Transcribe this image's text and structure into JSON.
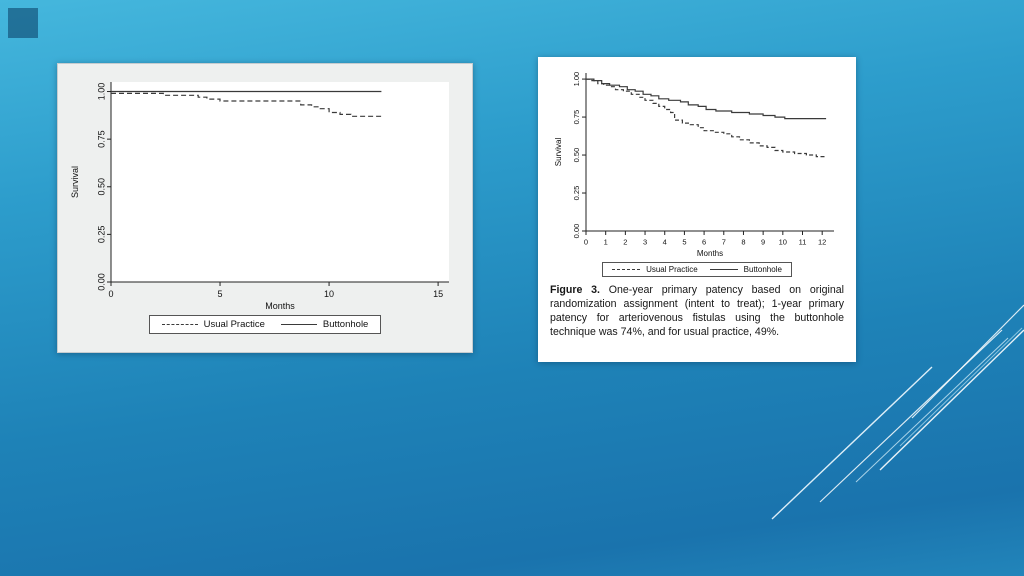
{
  "slide": {
    "background_top_color": "#45b7dd",
    "background_bottom_color": "#1a73ad"
  },
  "chart_data": [
    {
      "type": "line",
      "subtype": "kaplan-meier-step",
      "title": "",
      "xlabel": "Months",
      "ylabel": "Survival",
      "xlim": [
        0,
        15.5
      ],
      "ylim": [
        0,
        1.05
      ],
      "grid": false,
      "legend_position": "bottom",
      "xticks": [
        {
          "v": 0,
          "label": "0"
        },
        {
          "v": 5,
          "label": "5"
        },
        {
          "v": 10,
          "label": "10"
        },
        {
          "v": 15,
          "label": "15"
        }
      ],
      "yticks": [
        {
          "v": 0,
          "label": "0.00"
        },
        {
          "v": 0.25,
          "label": "0.25"
        },
        {
          "v": 0.5,
          "label": "0.50"
        },
        {
          "v": 0.75,
          "label": "0.75"
        },
        {
          "v": 1,
          "label": "1.00"
        }
      ],
      "series": [
        {
          "name": "Usual Practice",
          "style": "dashed",
          "color": "#3a3a3a",
          "points": [
            [
              0,
              0.99
            ],
            [
              2,
              0.99
            ],
            [
              2.4,
              0.98
            ],
            [
              4,
              0.97
            ],
            [
              4.4,
              0.96
            ],
            [
              5,
              0.95
            ],
            [
              8.2,
              0.95
            ],
            [
              8.7,
              0.93
            ],
            [
              9.2,
              0.92
            ],
            [
              9.6,
              0.91
            ],
            [
              10,
              0.89
            ],
            [
              10.5,
              0.88
            ],
            [
              11,
              0.87
            ],
            [
              12.4,
              0.86
            ]
          ]
        },
        {
          "name": "Buttonhole",
          "style": "solid",
          "color": "#3a3a3a",
          "points": [
            [
              0,
              1.0
            ],
            [
              12.4,
              1.0
            ]
          ]
        }
      ]
    },
    {
      "type": "line",
      "subtype": "kaplan-meier-step",
      "title": "",
      "xlabel": "Months",
      "ylabel": "Survival",
      "xlim": [
        0,
        12.6
      ],
      "ylim": [
        0,
        1.04
      ],
      "grid": false,
      "legend_position": "bottom",
      "xticks": [
        {
          "v": 0,
          "label": "0"
        },
        {
          "v": 1,
          "label": "1"
        },
        {
          "v": 2,
          "label": "2"
        },
        {
          "v": 3,
          "label": "3"
        },
        {
          "v": 4,
          "label": "4"
        },
        {
          "v": 5,
          "label": "5"
        },
        {
          "v": 6,
          "label": "6"
        },
        {
          "v": 7,
          "label": "7"
        },
        {
          "v": 8,
          "label": "8"
        },
        {
          "v": 9,
          "label": "9"
        },
        {
          "v": 10,
          "label": "10"
        },
        {
          "v": 11,
          "label": "11"
        },
        {
          "v": 12,
          "label": "12"
        }
      ],
      "yticks": [
        {
          "v": 0,
          "label": "0.00"
        },
        {
          "v": 0.25,
          "label": "0.25"
        },
        {
          "v": 0.5,
          "label": "0.50"
        },
        {
          "v": 0.75,
          "label": "0.75"
        },
        {
          "v": 1,
          "label": "1.00"
        }
      ],
      "series": [
        {
          "name": "Usual Practice",
          "style": "dashed",
          "color": "#3a3a3a",
          "points": [
            [
              0,
              1.0
            ],
            [
              0.3,
              0.99
            ],
            [
              0.6,
              0.97
            ],
            [
              0.9,
              0.96
            ],
            [
              1.2,
              0.95
            ],
            [
              1.5,
              0.93
            ],
            [
              1.9,
              0.92
            ],
            [
              2.3,
              0.9
            ],
            [
              2.7,
              0.88
            ],
            [
              3,
              0.86
            ],
            [
              3.4,
              0.84
            ],
            [
              3.7,
              0.82
            ],
            [
              4,
              0.8
            ],
            [
              4.3,
              0.78
            ],
            [
              4.5,
              0.73
            ],
            [
              4.9,
              0.71
            ],
            [
              5.3,
              0.7
            ],
            [
              5.7,
              0.68
            ],
            [
              6,
              0.66
            ],
            [
              6.5,
              0.65
            ],
            [
              7,
              0.64
            ],
            [
              7.4,
              0.62
            ],
            [
              7.8,
              0.6
            ],
            [
              8.3,
              0.58
            ],
            [
              8.8,
              0.56
            ],
            [
              9.2,
              0.55
            ],
            [
              9.6,
              0.53
            ],
            [
              10,
              0.52
            ],
            [
              10.6,
              0.51
            ],
            [
              11.2,
              0.5
            ],
            [
              11.7,
              0.49
            ],
            [
              12.2,
              0.49
            ]
          ]
        },
        {
          "name": "Buttonhole",
          "style": "solid",
          "color": "#3a3a3a",
          "points": [
            [
              0,
              1.0
            ],
            [
              0.4,
              0.99
            ],
            [
              0.8,
              0.97
            ],
            [
              1.2,
              0.96
            ],
            [
              1.7,
              0.95
            ],
            [
              2.1,
              0.93
            ],
            [
              2.5,
              0.92
            ],
            [
              2.9,
              0.9
            ],
            [
              3.3,
              0.89
            ],
            [
              3.7,
              0.87
            ],
            [
              4.2,
              0.86
            ],
            [
              4.8,
              0.85
            ],
            [
              5.2,
              0.83
            ],
            [
              5.7,
              0.82
            ],
            [
              6.1,
              0.8
            ],
            [
              6.6,
              0.79
            ],
            [
              7.4,
              0.78
            ],
            [
              8.3,
              0.77
            ],
            [
              9,
              0.76
            ],
            [
              9.6,
              0.75
            ],
            [
              10.1,
              0.74
            ],
            [
              12.2,
              0.74
            ]
          ]
        }
      ]
    }
  ],
  "caption": {
    "label": "Figure 3.",
    "text": "One-year primary patency based on original randomization assignment (intent to treat); 1-year primary patency for arteriovenous fistulas using the buttonhole technique was 74%, and for usual practice, 49%."
  }
}
